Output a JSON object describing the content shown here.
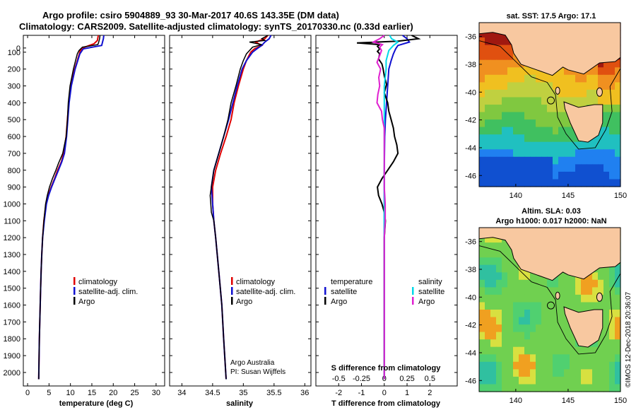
{
  "header": {
    "line1": "Argo profile: csiro 5904889_93 30-Mar-2017 40.6S 143.35E (DM data)",
    "line2": "Climatology: CARS2009. Satellite-adjusted climatology: synTS_20170330.nc (0.33d earlier)"
  },
  "colors": {
    "climatology": "#e00000",
    "satellite": "#1010d0",
    "argo": "#000000",
    "salinity_satellite": "#00d8e8",
    "salinity_argo": "#e020d0",
    "land": "#f8c8a0",
    "coast": "#000000"
  },
  "depth_ticks": [
    "0",
    "100",
    "200",
    "300",
    "400",
    "500",
    "600",
    "700",
    "800",
    "900",
    "1000",
    "1100",
    "1200",
    "1300",
    "1400",
    "1500",
    "1600",
    "1700",
    "1800",
    "1900",
    "2000"
  ],
  "chart_data": [
    {
      "type": "line",
      "title": "",
      "xlabel": "temperature (deg C)",
      "ylabel": "depth",
      "xlim": [
        -1,
        32
      ],
      "ylim": [
        0,
        2080
      ],
      "x_ticks": [
        "0",
        "5",
        "10",
        "15",
        "20",
        "25",
        "30"
      ],
      "y_ticks": [
        "0",
        "100",
        "200",
        "300",
        "400",
        "500",
        "600",
        "700",
        "800",
        "900",
        "1000",
        "1100",
        "1200",
        "1300",
        "1400",
        "1500",
        "1600",
        "1700",
        "1800",
        "1900",
        "2000"
      ],
      "legend": [
        "climatology",
        "satellite-adj. clim.",
        "Argo"
      ],
      "series": [
        {
          "name": "climatology",
          "depth": [
            0,
            30,
            50,
            70,
            90,
            150,
            200,
            300,
            400,
            500,
            600,
            700,
            750,
            800,
            850,
            900,
            950,
            1000,
            1100,
            1200,
            1300,
            1400,
            1500,
            1600,
            1700,
            1800,
            2040
          ],
          "values": [
            16.5,
            16.3,
            15.5,
            13.3,
            12.3,
            11.6,
            11.0,
            10.1,
            9.6,
            9.3,
            9.0,
            8.4,
            7.9,
            7.0,
            6.3,
            5.5,
            4.8,
            4.3,
            3.8,
            3.5,
            3.3,
            3.15,
            3.05,
            2.95,
            2.85,
            2.75,
            2.6
          ]
        },
        {
          "name": "satellite-adj. clim.",
          "depth": [
            0,
            20,
            40,
            60,
            80,
            110,
            150,
            200,
            300,
            400,
            500,
            600,
            700,
            750,
            800,
            850,
            900,
            950,
            1000,
            1100,
            1200,
            1300,
            1400,
            1500,
            1600,
            1700,
            1800,
            2040
          ],
          "values": [
            17.8,
            17.7,
            17.5,
            17.3,
            13.0,
            12.2,
            11.7,
            11.1,
            10.2,
            9.7,
            9.4,
            9.1,
            8.6,
            8.0,
            7.2,
            6.4,
            5.6,
            4.9,
            4.4,
            3.9,
            3.5,
            3.3,
            3.15,
            3.05,
            2.95,
            2.85,
            2.75,
            2.6
          ]
        },
        {
          "name": "Argo",
          "depth": [
            0,
            20,
            40,
            55,
            70,
            90,
            110,
            150,
            200,
            300,
            400,
            500,
            600,
            700,
            760,
            800,
            850,
            900,
            950,
            1000,
            1100,
            1200,
            1300,
            1400,
            1500,
            1600,
            1700,
            1800,
            2040
          ],
          "values": [
            16.9,
            16.8,
            16.6,
            16.4,
            12.8,
            12.0,
            11.6,
            11.2,
            10.7,
            9.9,
            9.5,
            9.3,
            9.0,
            8.2,
            7.2,
            6.6,
            5.8,
            5.1,
            4.6,
            4.2,
            3.8,
            3.5,
            3.3,
            3.15,
            3.05,
            2.95,
            2.85,
            2.75,
            2.6
          ]
        }
      ]
    },
    {
      "type": "line",
      "title": "",
      "xlabel": "salinity",
      "ylabel": "depth",
      "xlim": [
        33.8,
        36.1
      ],
      "ylim": [
        0,
        2080
      ],
      "x_ticks": [
        "34",
        "34.5",
        "35",
        "35.5",
        "36"
      ],
      "legend": [
        "climatology",
        "satellite-adj. clim.",
        "Argo"
      ],
      "annotations": [
        "Argo Australia",
        "PI: Susan Wijffels"
      ],
      "series": [
        {
          "name": "climatology",
          "depth": [
            0,
            20,
            40,
            60,
            80,
            100,
            150,
            200,
            300,
            400,
            500,
            600,
            700,
            800,
            900,
            1000,
            1100,
            1200,
            1400,
            1600,
            1800,
            2040
          ],
          "values": [
            35.4,
            35.35,
            35.2,
            35.3,
            35.18,
            35.12,
            35.05,
            35.0,
            34.92,
            34.85,
            34.8,
            34.72,
            34.63,
            34.55,
            34.5,
            34.5,
            34.52,
            34.55,
            34.6,
            34.65,
            34.68,
            34.72
          ]
        },
        {
          "name": "satellite-adj. clim.",
          "depth": [
            0,
            20,
            40,
            60,
            80,
            100,
            150,
            200,
            300,
            400,
            500,
            600,
            700,
            800,
            900,
            1000,
            1100,
            1200,
            1400,
            1600,
            1800,
            2040
          ],
          "values": [
            35.45,
            35.42,
            35.35,
            35.3,
            35.22,
            35.15,
            35.05,
            34.98,
            34.9,
            34.83,
            34.76,
            34.68,
            34.6,
            34.52,
            34.48,
            34.5,
            34.52,
            34.55,
            34.6,
            34.65,
            34.68,
            34.72
          ]
        },
        {
          "name": "Argo",
          "depth": [
            0,
            20,
            30,
            40,
            55,
            70,
            90,
            110,
            150,
            200,
            300,
            400,
            500,
            600,
            700,
            800,
            900,
            950,
            1000,
            1050,
            1100,
            1200,
            1400,
            1600,
            1800,
            2040
          ],
          "values": [
            35.4,
            35.3,
            35.35,
            35.1,
            35.3,
            35.15,
            35.1,
            35.05,
            35.0,
            34.95,
            34.88,
            34.8,
            34.75,
            34.68,
            34.6,
            34.52,
            34.48,
            34.46,
            34.47,
            34.48,
            34.52,
            34.55,
            34.6,
            34.65,
            34.68,
            34.72
          ]
        }
      ]
    },
    {
      "type": "line",
      "title": "",
      "xlabel": "T difference from climatology",
      "xlabel2": "S difference from climatology",
      "ylabel": "depth",
      "xlim": [
        -3,
        3.2
      ],
      "ylim": [
        0,
        2080
      ],
      "x_ticks": [
        "-2",
        "-1",
        "0",
        "1",
        "2"
      ],
      "x2_ticks": [
        "-0.5",
        "-0.25",
        "0",
        "0.25",
        "0.5"
      ],
      "legend_left_title": "temperature",
      "legend_right_title": "salinity",
      "legend": [
        "satellite",
        "Argo"
      ],
      "series": [
        {
          "name": "temperature satellite",
          "depth": [
            0,
            20,
            40,
            60,
            80,
            110,
            150,
            200,
            300,
            400,
            500,
            600,
            800,
            1000,
            2040
          ],
          "values": [
            0.8,
            1.0,
            1.1,
            0.6,
            0.5,
            0.4,
            0.3,
            0.2,
            0.15,
            0.1,
            0.05,
            0.02,
            0.0,
            0.0,
            0.0
          ]
        },
        {
          "name": "temperature Argo",
          "depth": [
            0,
            20,
            35,
            45,
            55,
            65,
            80,
            95,
            110,
            140,
            170,
            200,
            240,
            290,
            340,
            400,
            450,
            500,
            550,
            600,
            650,
            700,
            750,
            800,
            850,
            900,
            950,
            1000,
            1050,
            1100,
            1200,
            1300,
            1500,
            1800,
            2040
          ],
          "values": [
            1.2,
            1.5,
            0.6,
            -1.2,
            -0.2,
            -0.3,
            -0.2,
            -0.3,
            -0.2,
            -0.25,
            -0.1,
            -0.05,
            0.0,
            0.1,
            0.0,
            0.15,
            0.2,
            0.3,
            0.4,
            0.45,
            0.55,
            0.6,
            0.4,
            0.15,
            -0.1,
            -0.3,
            -0.25,
            -0.1,
            0.0,
            0.05,
            0.0,
            0.0,
            0.0,
            0.0,
            0.0
          ]
        },
        {
          "name": "salinity satellite",
          "depth": [
            0,
            20,
            40,
            60,
            90,
            150,
            200,
            300,
            400,
            600,
            800,
            1000,
            1200,
            1500,
            1800,
            2040
          ],
          "values": [
            0.06,
            0.08,
            0.15,
            0.1,
            0.05,
            0.02,
            0.02,
            0.0,
            0.0,
            0.0,
            0.0,
            0.0,
            0.0,
            0.0,
            0.0,
            0.0
          ]
        },
        {
          "name": "salinity Argo",
          "depth": [
            0,
            20,
            40,
            55,
            70,
            90,
            120,
            160,
            200,
            250,
            300,
            350,
            400,
            450,
            500,
            550,
            600,
            700,
            800,
            900,
            1000,
            1100,
            1200,
            1500,
            1800,
            2040
          ],
          "values": [
            0.0,
            -0.05,
            -0.12,
            -0.02,
            -0.05,
            -0.03,
            -0.05,
            -0.08,
            -0.04,
            -0.06,
            -0.05,
            -0.07,
            -0.08,
            -0.03,
            -0.02,
            0.0,
            0.0,
            0.0,
            0.0,
            0.0,
            0.01,
            0.01,
            0.0,
            0.0,
            0.0,
            0.0
          ]
        }
      ]
    },
    {
      "type": "heatmap",
      "title": "sat. SST: 17.5  Argo: 17.1",
      "x_ticks": [
        "140",
        "145",
        "150"
      ],
      "y_ticks": [
        "-36",
        "-38",
        "-40",
        "-42",
        "-44",
        "-46"
      ],
      "xlim": [
        136.5,
        150
      ],
      "ylim": [
        -46.8,
        -35
      ],
      "argo_position": {
        "lon": 143.35,
        "lat": -40.6
      }
    },
    {
      "type": "heatmap",
      "title": "Altim. SLA: 0.03",
      "subtitle": "Argo h1000: 0.017 h2000: NaN",
      "x_ticks": [
        "140",
        "145",
        "150"
      ],
      "y_ticks": [
        "-36",
        "-38",
        "-40",
        "-42",
        "-44",
        "-46"
      ],
      "xlim": [
        136.5,
        150
      ],
      "ylim": [
        -46.8,
        -35
      ],
      "argo_position": {
        "lon": 143.35,
        "lat": -40.6
      }
    }
  ],
  "legend_labels": {
    "climatology": "climatology",
    "satellite_adj": "satellite-adj. clim.",
    "argo": "Argo",
    "temperature": "temperature",
    "salinity": "salinity",
    "satellite": "satellite"
  },
  "credit": {
    "line1": "Argo Australia",
    "line2": "PI: Susan Wijffels"
  },
  "watermark": "©IMOS 12-Dec-2018 20:36:07"
}
